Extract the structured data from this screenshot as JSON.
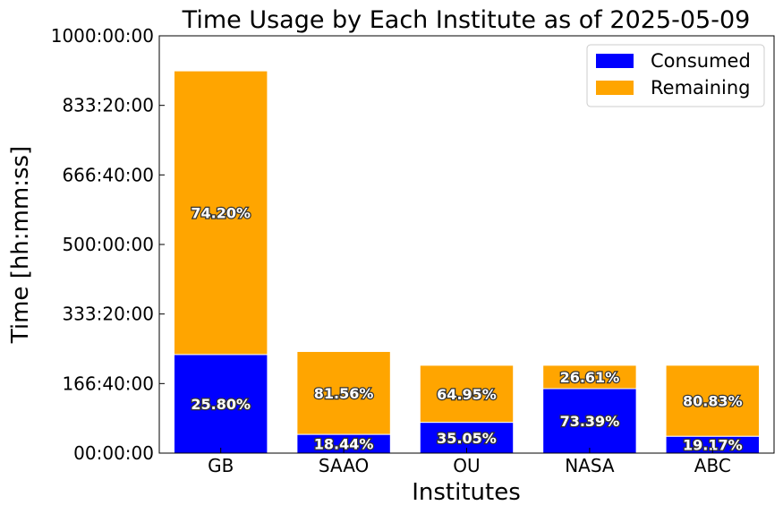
{
  "chart_data": {
    "type": "bar",
    "stacked": true,
    "title": "Time Usage by Each Institute as of 2025-05-09",
    "xlabel": "Institutes",
    "ylabel": "Time [hh:mm:ss]",
    "ylim": [
      0,
      1000
    ],
    "yticks": [
      0,
      166.6667,
      333.3333,
      500,
      666.6667,
      833.3333,
      1000
    ],
    "ytick_labels": [
      "00:00:00",
      "166:40:00",
      "333:20:00",
      "500:00:00",
      "666:40:00",
      "833:20:00",
      "1000:00:00"
    ],
    "categories": [
      "GB",
      "SAAO",
      "OU",
      "NASA",
      "ABC"
    ],
    "series": [
      {
        "name": "Consumed",
        "color": "#0000ff",
        "values": [
          236.3,
          44.9,
          73.8,
          154.5,
          40.4
        ],
        "labels": [
          "25.80%",
          "18.44%",
          "35.05%",
          "73.39%",
          "19.17%"
        ]
      },
      {
        "name": "Remaining",
        "color": "#ffa500",
        "values": [
          679.7,
          198.6,
          136.7,
          56.0,
          170.2
        ],
        "labels": [
          "74.20%",
          "81.56%",
          "64.95%",
          "26.61%",
          "80.83%"
        ]
      }
    ],
    "legend": "top-right",
    "grid": false
  }
}
